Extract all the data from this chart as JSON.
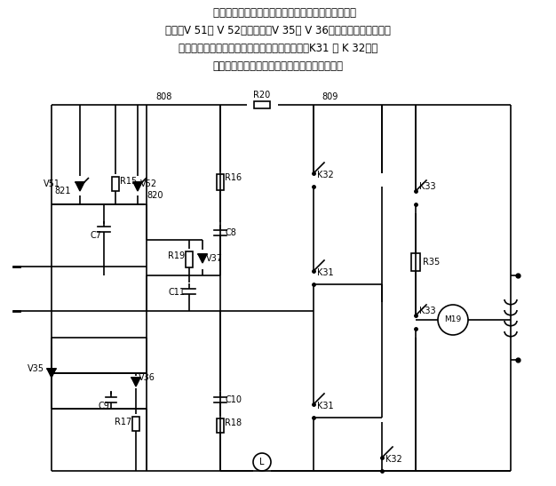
{
  "bg_color": "#ffffff",
  "line_color": "#000000",
  "text_color": "#000000",
  "fig_width": 6.26,
  "fig_height": 5.47,
  "dpi": 100,
  "text_lines": [
    "    所示为晶闸管单相桥式半控整流主电路。从图中可以",
    "看出，V 51和 V 52为晶闸管，V 35和 V 36为二极管，构成单相桥",
    "式半控整流电路，采用调压调速，控制电动机，K31 和 K 32可以",
    "改变电压的正负极，从而改变电机的旋转方向。"
  ]
}
